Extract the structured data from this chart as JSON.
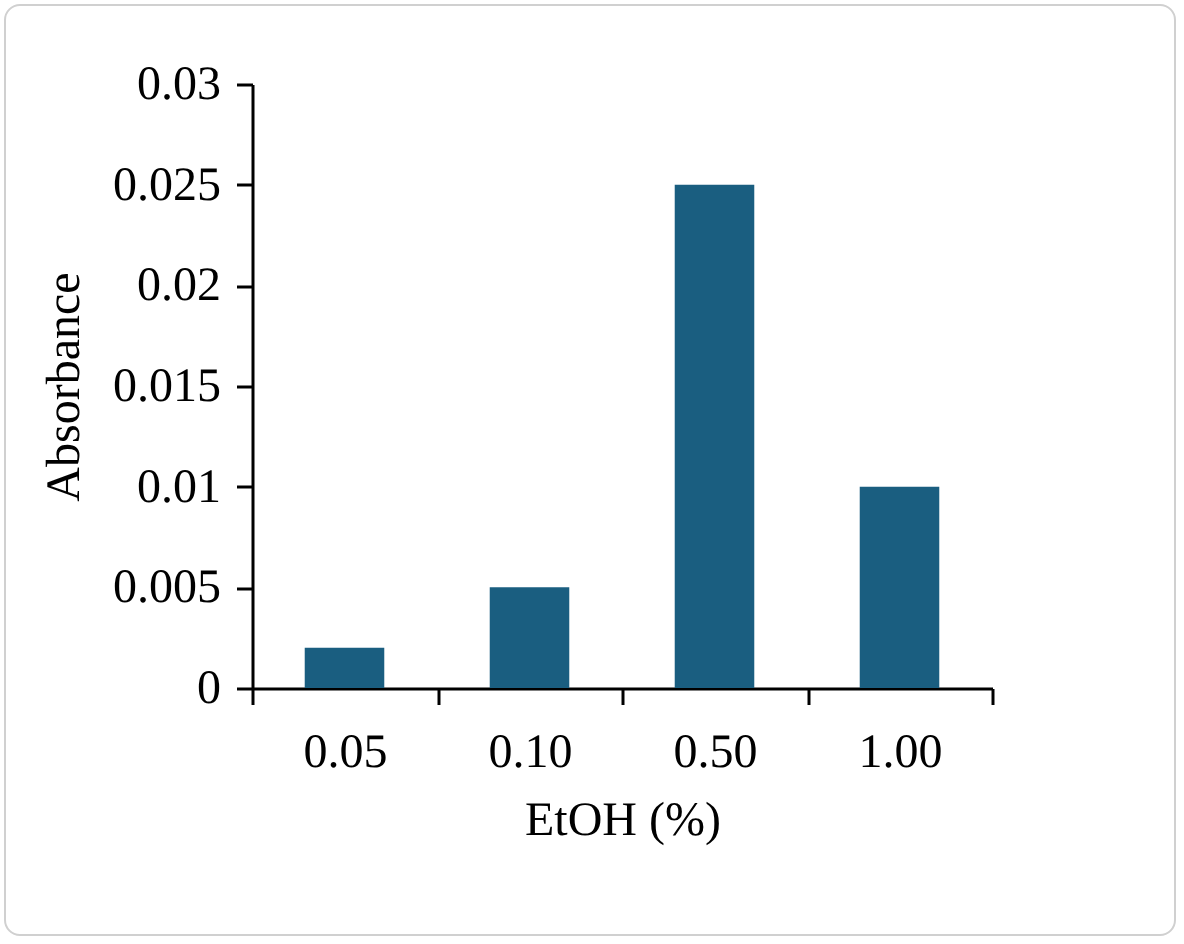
{
  "chart_data": {
    "type": "bar",
    "xlabel": "EtOH (%)",
    "ylabel": "Absorbance",
    "categories": [
      "0.05",
      "0.10",
      "0.50",
      "1.00"
    ],
    "values": [
      0.002,
      0.005,
      0.025,
      0.01
    ],
    "color": "#1a5e80",
    "ylim": [
      0,
      0.03
    ],
    "yticks": [
      0,
      0.005,
      0.01,
      0.015,
      0.02,
      0.025,
      0.03
    ],
    "grid": false
  }
}
